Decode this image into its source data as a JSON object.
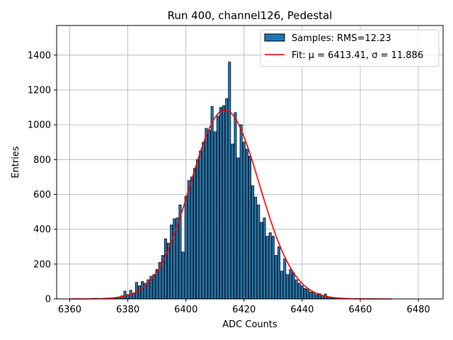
{
  "chart_data": {
    "type": "bar",
    "title": "Run 400, channel126, Pedestal",
    "xlabel": "ADC Counts",
    "ylabel": "Entries",
    "xlim": [
      6355.5,
      6488.5
    ],
    "ylim": [
      0,
      1570
    ],
    "xticks": [
      6360,
      6380,
      6400,
      6420,
      6440,
      6460,
      6480
    ],
    "yticks": [
      0,
      200,
      400,
      600,
      800,
      1000,
      1200,
      1400
    ],
    "grid": true,
    "legend_position": "upper right",
    "colors": {
      "bar_fill": "#1f77b4",
      "bar_edge": "#000000",
      "fit_line": "#ff0000",
      "grid": "#b0b0b0"
    },
    "series": [
      {
        "name": "Samples: RMS=12.23",
        "kind": "histogram",
        "bin_width": 0.8,
        "x": [
          6369,
          6370,
          6371,
          6372,
          6373,
          6374,
          6375,
          6376,
          6377,
          6378,
          6379,
          6380,
          6381,
          6382,
          6383,
          6384,
          6385,
          6386,
          6387,
          6388,
          6389,
          6390,
          6391,
          6392,
          6393,
          6394,
          6395,
          6396,
          6397,
          6398,
          6399,
          6400,
          6401,
          6402,
          6403,
          6404,
          6405,
          6406,
          6407,
          6408,
          6409,
          6410,
          6411,
          6412,
          6413,
          6414,
          6415,
          6416,
          6417,
          6418,
          6419,
          6420,
          6421,
          6422,
          6423,
          6424,
          6425,
          6426,
          6427,
          6428,
          6429,
          6430,
          6431,
          6432,
          6433,
          6434,
          6435,
          6436,
          6437,
          6438,
          6439,
          6440,
          6441,
          6442,
          6443,
          6444,
          6445,
          6446,
          6447,
          6448,
          6449,
          6450,
          6451,
          6452,
          6453,
          6454
        ],
        "values": [
          4,
          2,
          3,
          2,
          3,
          3,
          3,
          5,
          12,
          18,
          45,
          25,
          50,
          30,
          95,
          75,
          100,
          90,
          110,
          130,
          140,
          170,
          210,
          250,
          345,
          320,
          425,
          460,
          465,
          540,
          270,
          590,
          680,
          700,
          750,
          800,
          850,
          900,
          980,
          970,
          1105,
          960,
          1050,
          1100,
          1110,
          1150,
          1360,
          890,
          1070,
          810,
          1000,
          900,
          860,
          820,
          650,
          585,
          540,
          440,
          465,
          360,
          380,
          360,
          250,
          300,
          160,
          230,
          140,
          170,
          150,
          110,
          90,
          75,
          60,
          55,
          40,
          38,
          25,
          30,
          18,
          28,
          10,
          8,
          5,
          4,
          3,
          2
        ]
      },
      {
        "name": "Fit: $\\mu$ = 6413.41, $\\sigma$ = 11.886",
        "display_name": "Fit: μ = 6413.41, σ = 11.886",
        "kind": "gaussian_fit",
        "mu": 6413.41,
        "sigma": 11.886,
        "amplitude": 1085,
        "x_range": [
          6360,
          6471
        ]
      }
    ]
  }
}
